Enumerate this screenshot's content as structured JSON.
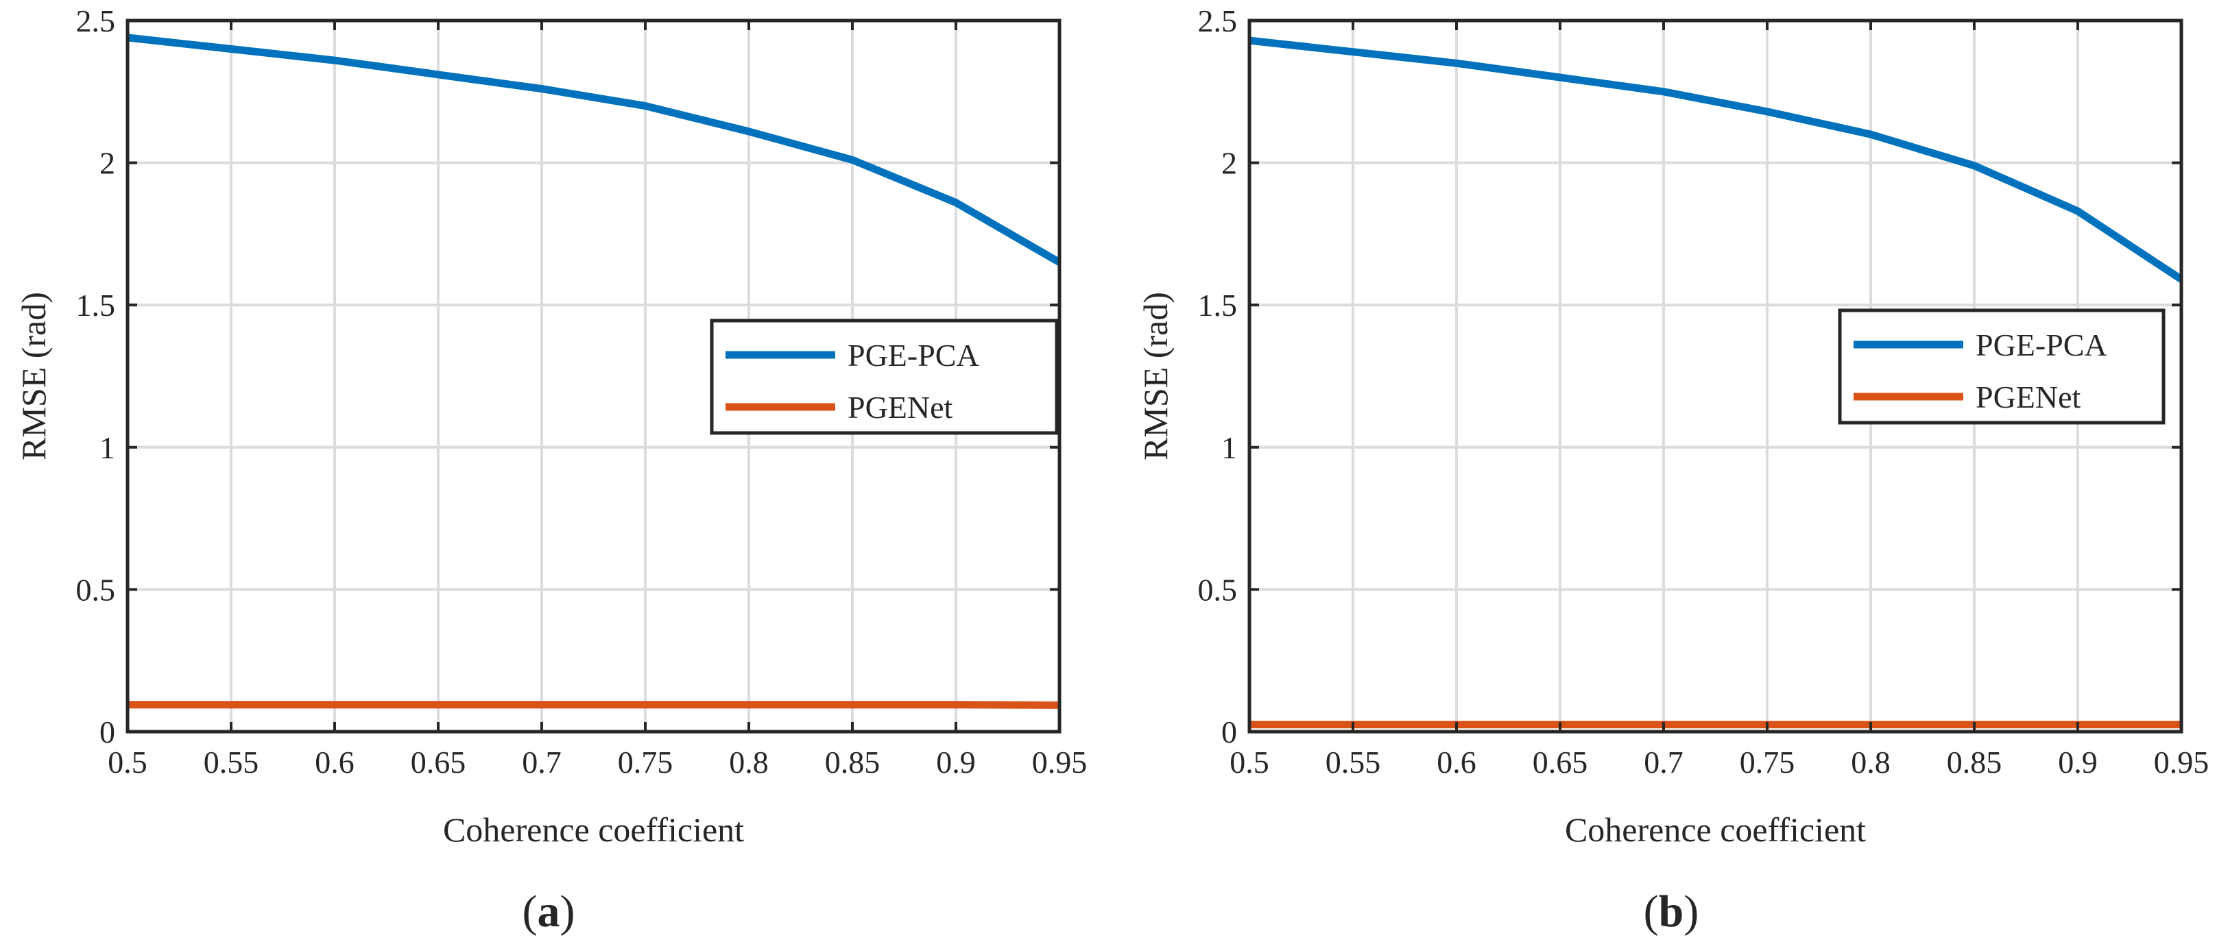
{
  "chart_data": [
    {
      "type": "line",
      "panel_label": "a",
      "xlabel": "Coherence coefficient",
      "ylabel": "RMSE (rad)",
      "xlim": [
        0.5,
        0.95
      ],
      "ylim": [
        0,
        2.5
      ],
      "xticks": [
        "0.5",
        "0.55",
        "0.6",
        "0.65",
        "0.7",
        "0.75",
        "0.8",
        "0.85",
        "0.9",
        "0.95"
      ],
      "yticks": [
        "0",
        "0.5",
        "1",
        "1.5",
        "2",
        "2.5"
      ],
      "grid": true,
      "legend_position": "right",
      "x": [
        0.5,
        0.55,
        0.6,
        0.65,
        0.7,
        0.75,
        0.8,
        0.85,
        0.9,
        0.95
      ],
      "series": [
        {
          "name": "PGE-PCA",
          "color": "#0072BD",
          "values": [
            2.44,
            2.4,
            2.36,
            2.31,
            2.26,
            2.2,
            2.11,
            2.01,
            1.86,
            1.65
          ]
        },
        {
          "name": "PGENet",
          "color": "#D95319",
          "values": [
            0.095,
            0.095,
            0.095,
            0.095,
            0.095,
            0.095,
            0.095,
            0.095,
            0.095,
            0.093
          ]
        }
      ]
    },
    {
      "type": "line",
      "panel_label": "b",
      "xlabel": "Coherence coefficient",
      "ylabel": "RMSE (rad)",
      "xlim": [
        0.5,
        0.95
      ],
      "ylim": [
        0,
        2.5
      ],
      "xticks": [
        "0.5",
        "0.55",
        "0.6",
        "0.65",
        "0.7",
        "0.75",
        "0.8",
        "0.85",
        "0.9",
        "0.95"
      ],
      "yticks": [
        "0",
        "0.5",
        "1",
        "1.5",
        "2",
        "2.5"
      ],
      "grid": true,
      "legend_position": "right",
      "x": [
        0.5,
        0.55,
        0.6,
        0.65,
        0.7,
        0.75,
        0.8,
        0.85,
        0.9,
        0.95
      ],
      "series": [
        {
          "name": "PGE-PCA",
          "color": "#0072BD",
          "values": [
            2.43,
            2.39,
            2.35,
            2.3,
            2.25,
            2.18,
            2.1,
            1.99,
            1.83,
            1.59
          ]
        },
        {
          "name": "PGENet",
          "color": "#D95319",
          "values": [
            0.025,
            0.025,
            0.025,
            0.025,
            0.025,
            0.025,
            0.025,
            0.025,
            0.025,
            0.025
          ]
        }
      ]
    }
  ]
}
